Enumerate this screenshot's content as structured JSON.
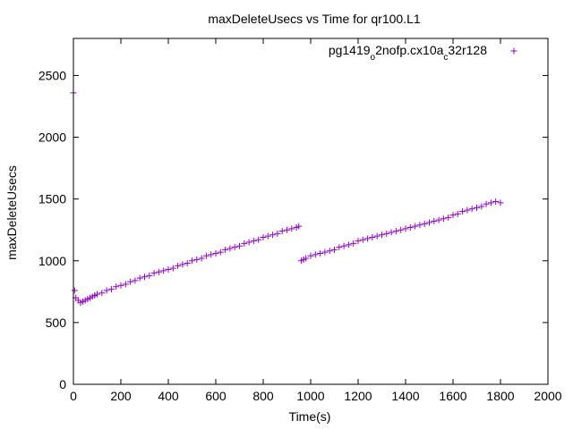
{
  "chart_data": {
    "type": "scatter",
    "title": "maxDeleteUsecs vs Time for qr100.L1",
    "xlabel": "Time(s)",
    "ylabel": "maxDeleteUsecs",
    "xlim": [
      0,
      2000
    ],
    "ylim": [
      0,
      2800
    ],
    "x_ticks": [
      "0",
      "200",
      "400",
      "600",
      "800",
      "1000",
      "1200",
      "1400",
      "1600",
      "1800",
      "2000"
    ],
    "y_ticks": [
      "0",
      "500",
      "1000",
      "1500",
      "2000",
      "2500"
    ],
    "legend_position": "top-right",
    "marker": "+",
    "color": "#9400d3",
    "series": [
      {
        "name": "pg1419_o2nofp.cx10a_c32r128",
        "legend_parts": [
          {
            "text": "pg1419",
            "sub": false
          },
          {
            "text": "o",
            "sub": true
          },
          {
            "text": "2nofp.cx10a",
            "sub": false
          },
          {
            "text": "c",
            "sub": true
          },
          {
            "text": "32r128",
            "sub": false
          }
        ],
        "x": [
          0,
          5,
          10,
          20,
          30,
          40,
          50,
          60,
          70,
          80,
          90,
          100,
          120,
          140,
          160,
          180,
          200,
          220,
          240,
          260,
          280,
          300,
          320,
          340,
          360,
          380,
          400,
          420,
          440,
          460,
          480,
          500,
          520,
          540,
          560,
          580,
          600,
          620,
          640,
          660,
          680,
          700,
          720,
          740,
          760,
          780,
          800,
          820,
          840,
          860,
          880,
          900,
          920,
          940,
          950,
          960,
          970,
          980,
          1000,
          1020,
          1040,
          1060,
          1080,
          1100,
          1120,
          1140,
          1160,
          1180,
          1200,
          1220,
          1240,
          1260,
          1280,
          1300,
          1320,
          1340,
          1360,
          1380,
          1400,
          1420,
          1440,
          1460,
          1480,
          1500,
          1520,
          1540,
          1560,
          1580,
          1600,
          1620,
          1640,
          1660,
          1680,
          1700,
          1720,
          1740,
          1760,
          1780,
          1800
        ],
        "y": [
          2360,
          760,
          700,
          680,
          660,
          670,
          680,
          690,
          700,
          710,
          720,
          730,
          740,
          760,
          770,
          790,
          800,
          810,
          830,
          840,
          860,
          870,
          880,
          900,
          910,
          920,
          930,
          940,
          960,
          970,
          980,
          1000,
          1010,
          1020,
          1040,
          1050,
          1060,
          1070,
          1090,
          1100,
          1110,
          1120,
          1140,
          1150,
          1160,
          1170,
          1190,
          1200,
          1210,
          1220,
          1240,
          1250,
          1260,
          1270,
          1280,
          1000,
          1010,
          1020,
          1040,
          1050,
          1060,
          1070,
          1080,
          1090,
          1110,
          1120,
          1130,
          1140,
          1160,
          1170,
          1180,
          1190,
          1200,
          1210,
          1220,
          1230,
          1240,
          1250,
          1260,
          1270,
          1280,
          1290,
          1300,
          1310,
          1320,
          1330,
          1340,
          1350,
          1370,
          1380,
          1400,
          1410,
          1420,
          1430,
          1440,
          1460,
          1470,
          1480,
          1470
        ]
      }
    ]
  }
}
